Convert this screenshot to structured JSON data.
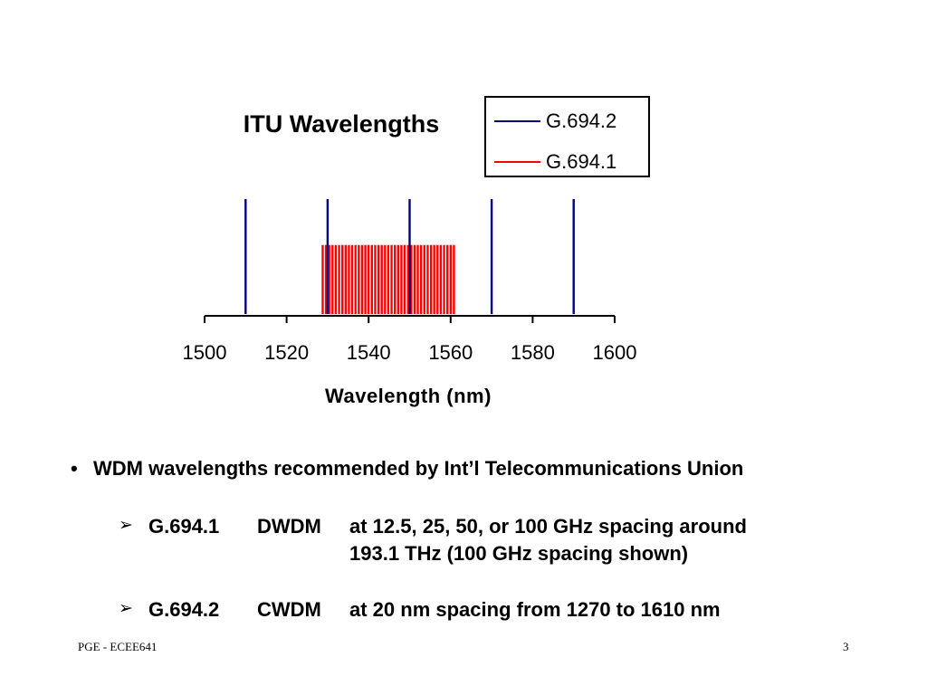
{
  "chart_data": {
    "type": "bar",
    "title": "ITU Wavelengths",
    "xlabel": "Wavelength (nm)",
    "ylabel": "",
    "xlim": [
      1500,
      1600
    ],
    "x_ticks": [
      1500,
      1520,
      1540,
      1560,
      1580,
      1600
    ],
    "legend_position": "top-right",
    "grid": false,
    "series": [
      {
        "name": "G.694.2",
        "color": "#000080",
        "relative_height": 1.0,
        "x": [
          1510,
          1530,
          1550,
          1570,
          1590
        ]
      },
      {
        "name": "G.694.1",
        "color": "#ff0000",
        "relative_height": 0.6,
        "x_start": 1528.8,
        "x_end": 1560.6,
        "spacing": 0.8
      }
    ]
  },
  "bullet": {
    "marker": "•",
    "text": "WDM wavelengths recommended by Int’l Telecommunications Union"
  },
  "subitems": [
    {
      "marker": "➢",
      "code": "G.694.1",
      "type": "DWDM",
      "line1": "at 12.5, 25, 50, or 100 GHz spacing around",
      "line2": "193.1 THz (100 GHz spacing shown)"
    },
    {
      "marker": "➢",
      "code": "G.694.2",
      "type": "CWDM",
      "line1": "at 20 nm spacing from 1270 to 1610 nm"
    }
  ],
  "footer": {
    "left": "PGE - ECEE641",
    "page_number": "3"
  }
}
